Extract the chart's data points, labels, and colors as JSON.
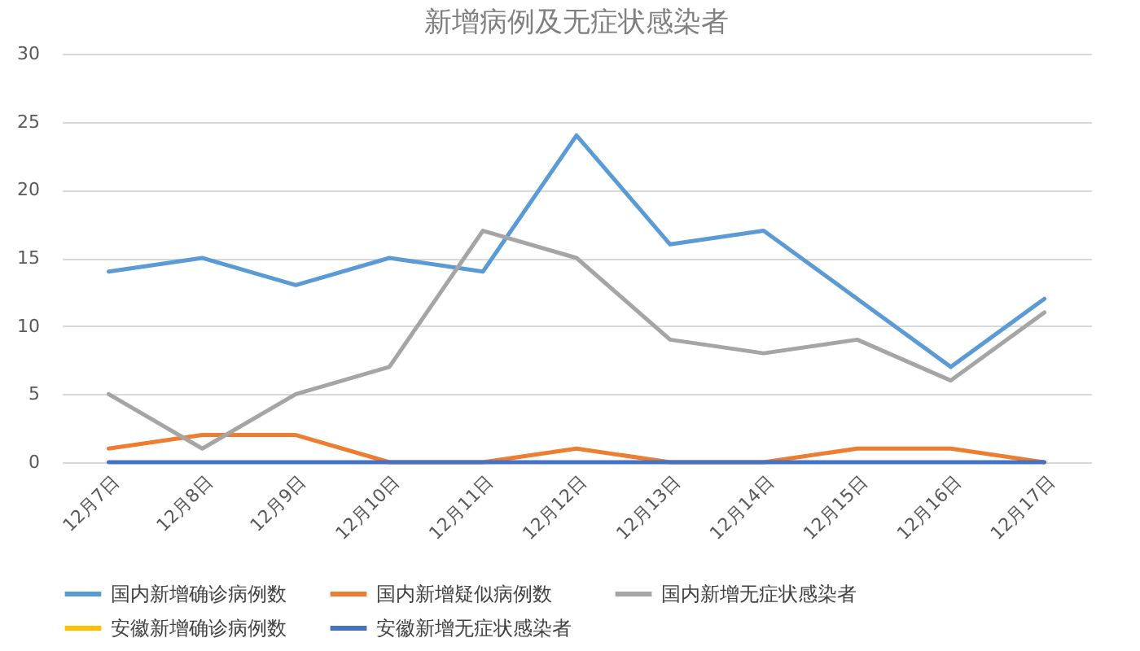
{
  "chart_data": {
    "type": "line",
    "title": "新增病例及无症状感染者",
    "categories": [
      "12月7日",
      "12月8日",
      "12月9日",
      "12月10日",
      "12月11日",
      "12月12日",
      "12月13日",
      "12月14日",
      "12月15日",
      "12月16日",
      "12月17日"
    ],
    "series": [
      {
        "name": "国内新增确诊病例数",
        "color": "#5b9bd5",
        "values": [
          14,
          15,
          13,
          15,
          14,
          24,
          16,
          17,
          12,
          7,
          12
        ]
      },
      {
        "name": "国内新增疑似病例数",
        "color": "#ed7d31",
        "values": [
          1,
          2,
          2,
          0,
          0,
          1,
          0,
          0,
          1,
          1,
          0
        ]
      },
      {
        "name": "国内新增无症状感染者",
        "color": "#a5a5a5",
        "values": [
          5,
          1,
          5,
          7,
          17,
          15,
          9,
          8,
          9,
          6,
          11
        ]
      },
      {
        "name": "安徽新增确诊病例数",
        "color": "#ffc000",
        "values": [
          null,
          null,
          null,
          null,
          null,
          null,
          null,
          null,
          null,
          null,
          null
        ]
      },
      {
        "name": "安徽新增无症状感染者",
        "color": "#4472c4",
        "values": [
          0,
          0,
          0,
          0,
          0,
          0,
          0,
          0,
          0,
          0,
          0
        ]
      }
    ],
    "ylim": [
      0,
      30
    ],
    "yticks": [
      0,
      5,
      10,
      15,
      20,
      25,
      30
    ],
    "grid": "y",
    "legend": "bottom",
    "marker": "none",
    "line_style": "solid"
  }
}
